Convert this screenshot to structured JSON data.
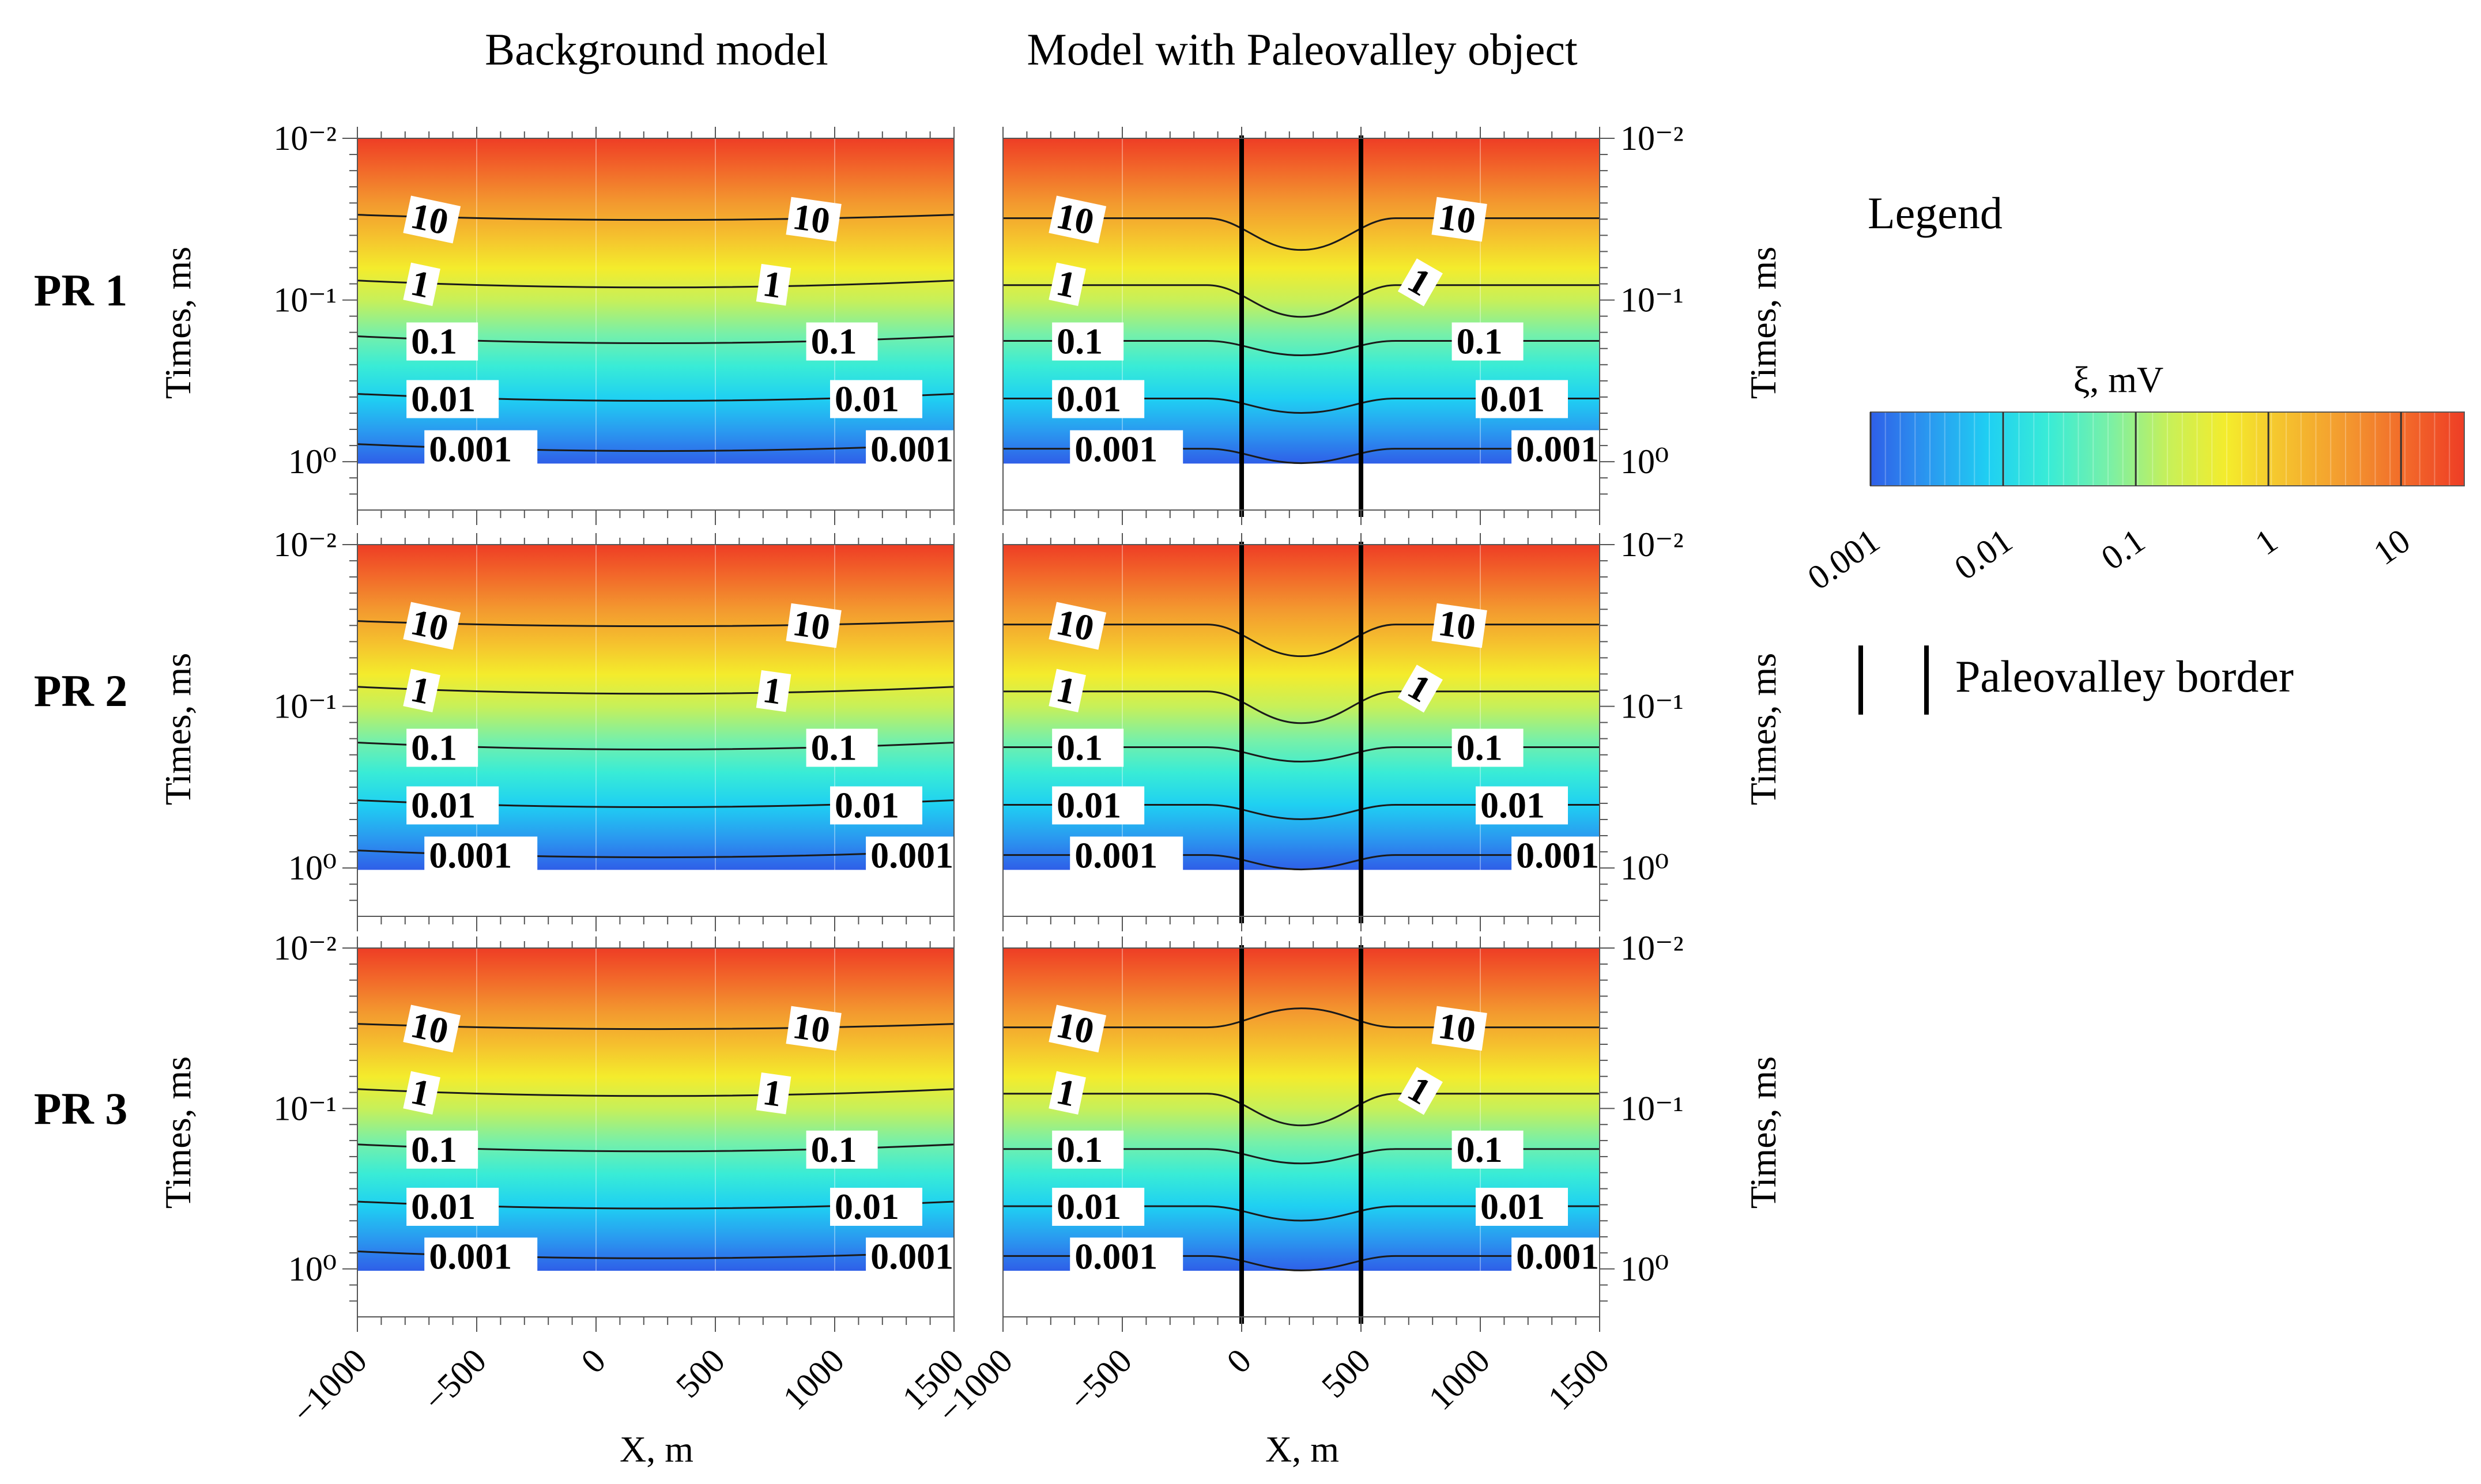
{
  "figure": {
    "column_titles": [
      "Background model",
      "Model with Paleovalley object"
    ],
    "row_labels": [
      "PR 1",
      "PR 2",
      "PR 3"
    ],
    "y_axis_label": "Times, ms",
    "x_axis_label": "X, m"
  },
  "legend": {
    "title": "Legend",
    "colorbar_label": "ξ, mV",
    "colorbar_ticks": [
      "0.001",
      "0.01",
      "0.1",
      "1",
      "10"
    ],
    "border_label": "Paleovalley border"
  },
  "chart_data": {
    "type": "contour",
    "xlabel": "X, m",
    "ylabel": "Times, ms",
    "xlim": [
      -1000,
      1500
    ],
    "x_ticks": [
      -1000,
      -500,
      0,
      500,
      1000,
      1500
    ],
    "x_tick_labels": [
      "−1000",
      "−500",
      "0",
      "500",
      "1000",
      "1500"
    ],
    "y_scale": "log",
    "y_tick_labels": [
      "10⁻²",
      "10⁻¹",
      "10⁰"
    ],
    "y_tick_values_ms": [
      0.01,
      0.1,
      1
    ],
    "colorbar": {
      "label": "ξ, mV",
      "scale": "log",
      "range_mV": [
        0.001,
        30
      ],
      "ticks": [
        0.001,
        0.01,
        0.1,
        1,
        10
      ]
    },
    "contour_levels_mV": [
      10,
      1,
      0.1,
      0.01,
      0.001
    ],
    "contour_labels": [
      "10",
      "1",
      "0.1",
      "0.01",
      "0.001"
    ],
    "paleovalley_borders_x_m": [
      0,
      500
    ],
    "panels": [
      {
        "profile": "PR 1",
        "model": "Background model",
        "paleovalley": false
      },
      {
        "profile": "PR 1",
        "model": "Model with Paleovalley object",
        "paleovalley": true
      },
      {
        "profile": "PR 2",
        "model": "Background model",
        "paleovalley": false
      },
      {
        "profile": "PR 2",
        "model": "Model with Paleovalley object",
        "paleovalley": true
      },
      {
        "profile": "PR 3",
        "model": "Background model",
        "paleovalley": false
      },
      {
        "profile": "PR 3",
        "model": "Model with Paleovalley object",
        "paleovalley": true
      }
    ]
  },
  "colors": {
    "ramp": [
      "#2f5fe8",
      "#2a9af0",
      "#1fd0f2",
      "#39ecd6",
      "#78f0a8",
      "#c6f05a",
      "#f4ec2c",
      "#f5c02e",
      "#f3992f",
      "#f26a2a",
      "#ee3d25"
    ],
    "contour_line": "#1a1a1a",
    "border_line": "#000000"
  }
}
